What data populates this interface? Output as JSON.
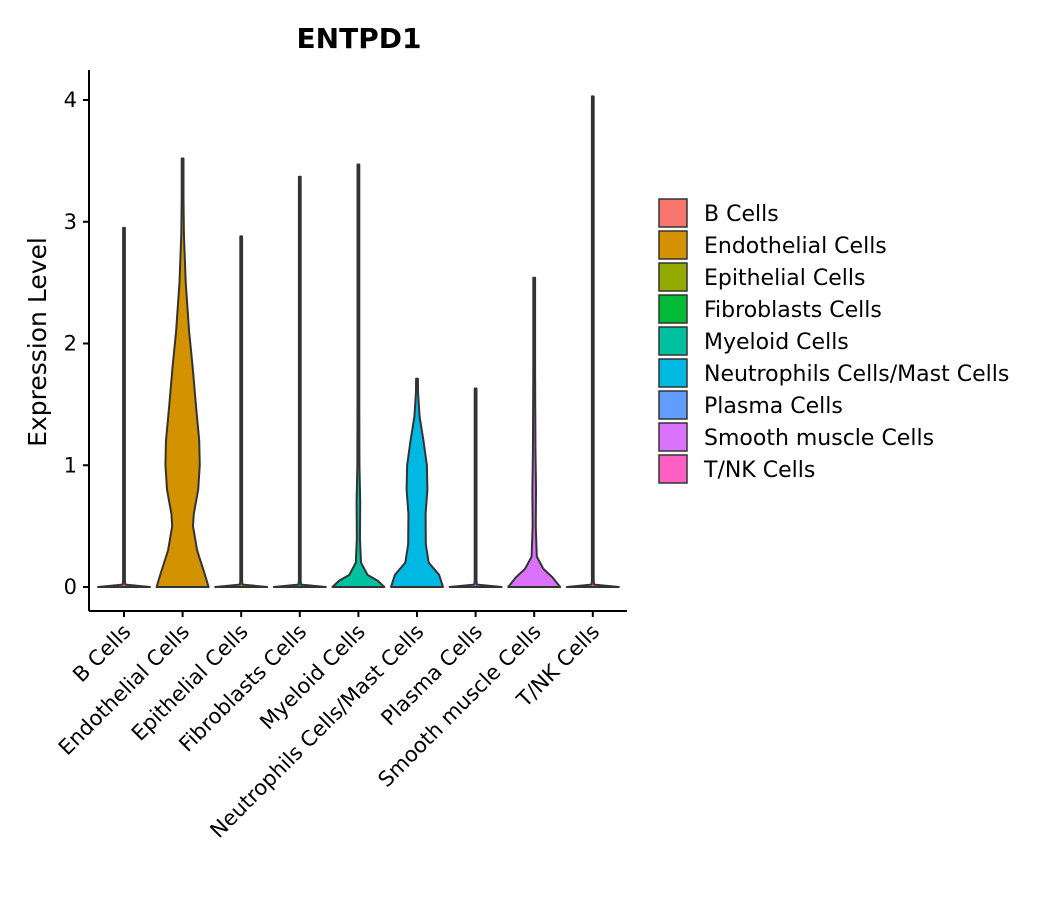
{
  "chart_data": {
    "type": "violin",
    "title": "ENTPD1",
    "xlabel": "",
    "ylabel": "Expression Level",
    "ylim": [
      -0.2,
      4.25
    ],
    "yticks": [
      0,
      1,
      2,
      3,
      4
    ],
    "categories": [
      "B Cells",
      "Endothelial Cells",
      "Epithelial Cells",
      "Fibroblasts Cells",
      "Myeloid Cells",
      "Neutrophils Cells/Mast Cells",
      "Plasma Cells",
      "Smooth muscle Cells",
      "T/NK Cells"
    ],
    "colors": [
      "#F8766D",
      "#D39200",
      "#93AA00",
      "#00BA38",
      "#00C19F",
      "#00B9E3",
      "#619CFF",
      "#DB72FB",
      "#FF61C3"
    ],
    "max_values": [
      2.95,
      3.52,
      2.88,
      3.37,
      3.47,
      1.71,
      1.63,
      2.54,
      4.03
    ],
    "violins": [
      {
        "name": "B Cells",
        "profile": [
          [
            0,
            1.0
          ],
          [
            0.02,
            0.05
          ],
          [
            0.05,
            0.01
          ],
          [
            2.95,
            0.01
          ]
        ]
      },
      {
        "name": "Endothelial Cells",
        "profile": [
          [
            0,
            1.0
          ],
          [
            0.1,
            0.86
          ],
          [
            0.3,
            0.56
          ],
          [
            0.5,
            0.4
          ],
          [
            0.6,
            0.43
          ],
          [
            0.8,
            0.6
          ],
          [
            1.0,
            0.66
          ],
          [
            1.2,
            0.64
          ],
          [
            1.5,
            0.51
          ],
          [
            1.8,
            0.39
          ],
          [
            2.1,
            0.25
          ],
          [
            2.5,
            0.12
          ],
          [
            2.9,
            0.05
          ],
          [
            3.2,
            0.02
          ],
          [
            3.52,
            0.01
          ]
        ]
      },
      {
        "name": "Epithelial Cells",
        "profile": [
          [
            0,
            1.0
          ],
          [
            0.02,
            0.05
          ],
          [
            0.05,
            0.01
          ],
          [
            2.88,
            0.01
          ]
        ]
      },
      {
        "name": "Fibroblasts Cells",
        "profile": [
          [
            0,
            1.0
          ],
          [
            0.02,
            0.05
          ],
          [
            0.05,
            0.01
          ],
          [
            3.37,
            0.01
          ]
        ]
      },
      {
        "name": "Myeloid Cells",
        "profile": [
          [
            0,
            1.0
          ],
          [
            0.05,
            0.75
          ],
          [
            0.1,
            0.35
          ],
          [
            0.2,
            0.1
          ],
          [
            0.4,
            0.06
          ],
          [
            0.7,
            0.07
          ],
          [
            1.0,
            0.04
          ],
          [
            1.5,
            0.02
          ],
          [
            2.0,
            0.01
          ],
          [
            3.47,
            0.01
          ]
        ]
      },
      {
        "name": "Neutrophils Cells/Mast Cells",
        "profile": [
          [
            0,
            1.0
          ],
          [
            0.1,
            0.85
          ],
          [
            0.2,
            0.45
          ],
          [
            0.35,
            0.34
          ],
          [
            0.6,
            0.33
          ],
          [
            0.8,
            0.4
          ],
          [
            1.0,
            0.38
          ],
          [
            1.2,
            0.25
          ],
          [
            1.4,
            0.1
          ],
          [
            1.6,
            0.04
          ],
          [
            1.71,
            0.01
          ]
        ]
      },
      {
        "name": "Plasma Cells",
        "profile": [
          [
            0,
            1.0
          ],
          [
            0.02,
            0.05
          ],
          [
            0.05,
            0.01
          ],
          [
            1.63,
            0.01
          ]
        ]
      },
      {
        "name": "Smooth muscle Cells",
        "profile": [
          [
            0,
            1.0
          ],
          [
            0.08,
            0.7
          ],
          [
            0.15,
            0.35
          ],
          [
            0.25,
            0.1
          ],
          [
            0.5,
            0.06
          ],
          [
            0.8,
            0.07
          ],
          [
            1.1,
            0.05
          ],
          [
            1.5,
            0.04
          ],
          [
            1.8,
            0.02
          ],
          [
            2.54,
            0.01
          ]
        ]
      },
      {
        "name": "T/NK Cells",
        "profile": [
          [
            0,
            1.0
          ],
          [
            0.02,
            0.05
          ],
          [
            0.05,
            0.01
          ],
          [
            4.03,
            0.01
          ]
        ]
      }
    ],
    "legend_position": "right"
  }
}
